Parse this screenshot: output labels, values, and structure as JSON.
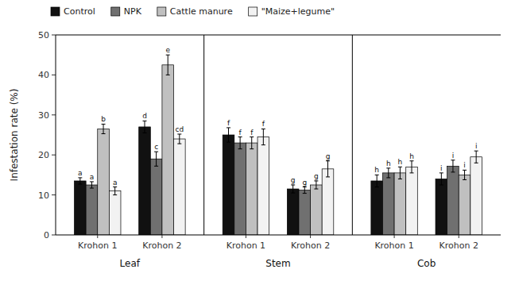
{
  "chart_data": {
    "type": "bar",
    "y_label": "Infestation rate (%)",
    "categories": [
      "Krohon 1",
      "Krohon 2",
      "Krohon 1",
      "Krohon 2",
      "Krohon 1",
      "Krohon 2"
    ],
    "annotations": [
      "Leaf",
      "Stem",
      "Cob"
    ],
    "series": [
      {
        "name": "Control",
        "color": "#111111",
        "values": [
          13.5,
          27.0,
          25.0,
          11.5,
          13.5,
          14.0
        ],
        "errors": [
          0.8,
          1.5,
          1.8,
          1.0,
          1.5,
          1.5
        ],
        "letters": [
          "a",
          "d",
          "f",
          "g",
          "h",
          "i"
        ]
      },
      {
        "name": "NPK",
        "color": "#707070",
        "values": [
          12.5,
          19.0,
          23.0,
          11.2,
          15.5,
          17.2
        ],
        "errors": [
          0.8,
          1.8,
          1.5,
          0.8,
          1.2,
          1.5
        ],
        "letters": [
          "a",
          "c",
          "f",
          "g",
          "h",
          "i"
        ]
      },
      {
        "name": "Cattle manure",
        "color": "#c0c0c0",
        "values": [
          26.5,
          42.5,
          23.0,
          12.5,
          15.5,
          15.0
        ],
        "errors": [
          1.2,
          2.5,
          1.5,
          1.0,
          1.5,
          1.2
        ],
        "letters": [
          "b",
          "e",
          "f",
          "g",
          "h",
          "i"
        ]
      },
      {
        "name": "\"Maize+legume\"",
        "color": "#f2f2f2",
        "values": [
          11.0,
          24.0,
          24.5,
          16.5,
          17.0,
          19.5
        ],
        "errors": [
          1.0,
          1.2,
          2.0,
          2.0,
          1.5,
          1.5
        ],
        "letters": [
          "a",
          "cd",
          "f",
          "g",
          "h",
          "i"
        ]
      }
    ],
    "ylim": [
      0,
      50
    ],
    "yticks": [
      0,
      10,
      20,
      30,
      40,
      50
    ],
    "grid": false,
    "legend": "top"
  }
}
